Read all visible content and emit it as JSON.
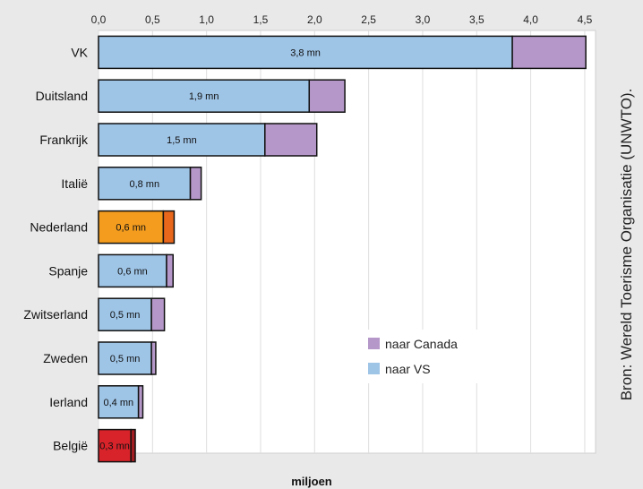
{
  "chart_data": {
    "type": "bar",
    "orientation": "horizontal",
    "stacked": true,
    "title": "",
    "xlabel": "miljoen",
    "ylabel": "",
    "xlim": [
      0,
      4.6
    ],
    "ticks": [
      "0,0",
      "0,5",
      "1,0",
      "1,5",
      "2,0",
      "2,5",
      "3,0",
      "3,5",
      "4,0",
      "4,5"
    ],
    "tick_values": [
      0,
      0.5,
      1.0,
      1.5,
      2.0,
      2.5,
      3.0,
      3.5,
      4.0,
      4.5
    ],
    "grid": true,
    "legend_position": "lower-right",
    "categories": [
      "VK",
      "Duitsland",
      "Frankrijk",
      "Italië",
      "Nederland",
      "Spanje",
      "Zwitserland",
      "Zweden",
      "Ierland",
      "België"
    ],
    "series": [
      {
        "name": "naar VS",
        "color": "#9ec4e6",
        "values": [
          3.83,
          1.95,
          1.54,
          0.85,
          0.6,
          0.63,
          0.49,
          0.49,
          0.37,
          0.3
        ],
        "labels": [
          "3,8 mn",
          "1,9 mn",
          "1,5 mn",
          "0,8 mn",
          "0,6 mn",
          "0,6 mn",
          "0,5 mn",
          "0,5 mn",
          "0,4 mn",
          "0,3 mn"
        ]
      },
      {
        "name": "naar Canada",
        "color": "#b598c9",
        "values": [
          0.68,
          0.33,
          0.48,
          0.1,
          0.1,
          0.06,
          0.12,
          0.04,
          0.04,
          0.04
        ]
      }
    ],
    "highlight_colors": {
      "Nederland": [
        "#f39c1e",
        "#e8671b"
      ],
      "België": [
        "#d8232a",
        "#a31e22"
      ]
    }
  },
  "source_text": "Bron: Wereld Toerisme Organisatie (UNWTO)."
}
